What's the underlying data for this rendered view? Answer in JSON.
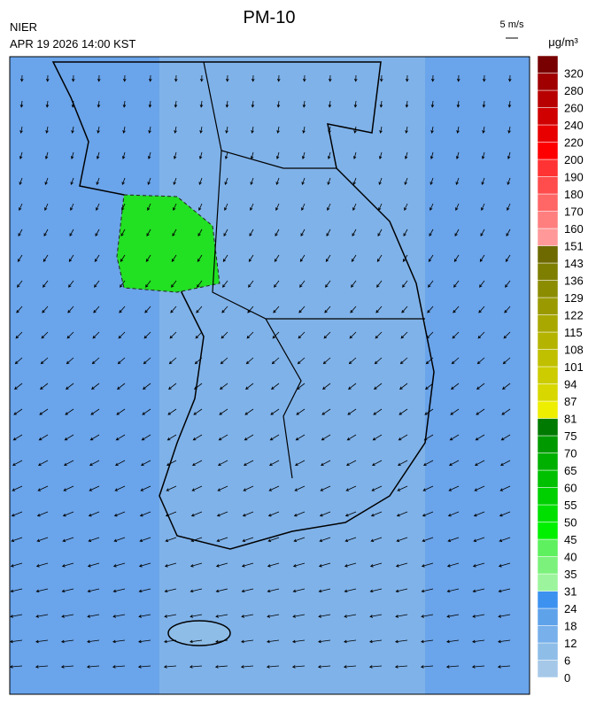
{
  "header": {
    "title": "PM-10",
    "source": "NIER",
    "datetime": "APR 19 2026 14:00 KST",
    "wind_scale": "5 m/s",
    "unit": "μg/m³"
  },
  "legend": {
    "ticks": [
      0,
      6,
      12,
      18,
      24,
      31,
      35,
      40,
      45,
      50,
      55,
      60,
      65,
      70,
      75,
      81,
      87,
      94,
      101,
      108,
      115,
      122,
      129,
      136,
      143,
      151,
      160,
      170,
      180,
      190,
      200,
      220,
      240,
      260,
      280,
      320
    ],
    "colors": [
      "#a6c8e8",
      "#8ebde8",
      "#77b0ea",
      "#5ea2ea",
      "#3d92f0",
      "#9cf59c",
      "#7cf27c",
      "#5ef05e",
      "#00f000",
      "#00e000",
      "#00d000",
      "#00c000",
      "#00b000",
      "#009a00",
      "#007a00",
      "#eeee00",
      "#d8d800",
      "#cccc00",
      "#c0c000",
      "#b4b400",
      "#a8a800",
      "#9a9a00",
      "#8c8c00",
      "#7e7e00",
      "#6e6a00",
      "#ff9999",
      "#ff7f7f",
      "#ff6666",
      "#ff4c4c",
      "#ff3333",
      "#ff0000",
      "#e80000",
      "#d00000",
      "#b80000",
      "#a00000",
      "#780000"
    ]
  }
}
